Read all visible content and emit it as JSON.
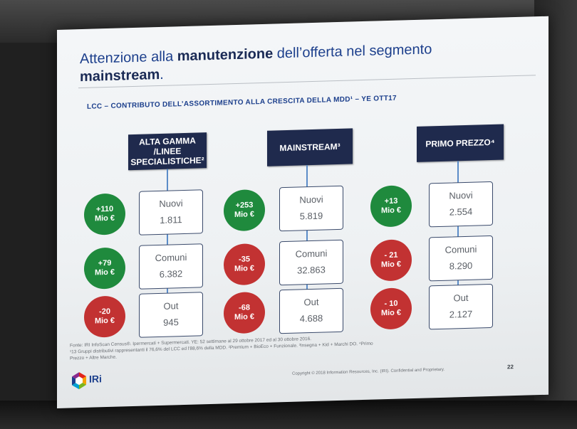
{
  "title": {
    "part1": "Attenzione alla ",
    "bold1": "manutenzione",
    "part2": " dell’offerta nel segmento",
    "bold2": "mainstream",
    "end": "."
  },
  "subtitle": "LCC – CONTRIBUTO DELL’ASSORTIMENTO ALLA CRESCITA DELLA MDD¹ – YE OTT17",
  "segments": [
    {
      "header": "ALTA GAMMA /LINEE SPECIALISTICHE²",
      "rows": [
        {
          "label": "Nuovi",
          "value": "1.811",
          "delta": "+110",
          "unit": "Mio €",
          "color": "#1f8a3d"
        },
        {
          "label": "Comuni",
          "value": "6.382",
          "delta": "+79",
          "unit": "Mio €",
          "color": "#1f8a3d"
        },
        {
          "label": "Out",
          "value": "945",
          "delta": "-20",
          "unit": "Mio €",
          "color": "#c23232"
        }
      ]
    },
    {
      "header": "MAINSTREAM³",
      "rows": [
        {
          "label": "Nuovi",
          "value": "5.819",
          "delta": "+253",
          "unit": "Mio €",
          "color": "#1f8a3d"
        },
        {
          "label": "Comuni",
          "value": "32.863",
          "delta": "-35",
          "unit": "Mio €",
          "color": "#c23232"
        },
        {
          "label": "Out",
          "value": "4.688",
          "delta": "-68",
          "unit": "Mio €",
          "color": "#c23232"
        }
      ]
    },
    {
      "header": "PRIMO PREZZO⁴",
      "rows": [
        {
          "label": "Nuovi",
          "value": "2.554",
          "delta": "+13",
          "unit": "Mio €",
          "color": "#1f8a3d"
        },
        {
          "label": "Comuni",
          "value": "8.290",
          "delta": "- 21",
          "unit": "Mio €",
          "color": "#c23232"
        },
        {
          "label": "Out",
          "value": "2.127",
          "delta": "- 10",
          "unit": "Mio €",
          "color": "#c23232"
        }
      ]
    }
  ],
  "footnote": {
    "line1": "Fonte: IRI InfoScan Census®. Ipermercati + Supermercati. YE: 52 settimane al 29 ottobre 2017 ed al 30 ottobre 2016.",
    "line2": "¹13 Gruppi distributivi rappresentanti il 76,6% del LCC ed l'88,6% della MDD. ²Premium + BioEco + Funzionale. ³Insegna + Kid + Marchi DO. ⁴Primo",
    "line3": "Prezzo + Altre Marche."
  },
  "logo": {
    "text": "IRi",
    "icon": "iri-logo-icon"
  },
  "copyright": "Copyright © 2018 Information Resources, Inc. (IRI). Confidential and Proprietary.",
  "page_number": "22"
}
